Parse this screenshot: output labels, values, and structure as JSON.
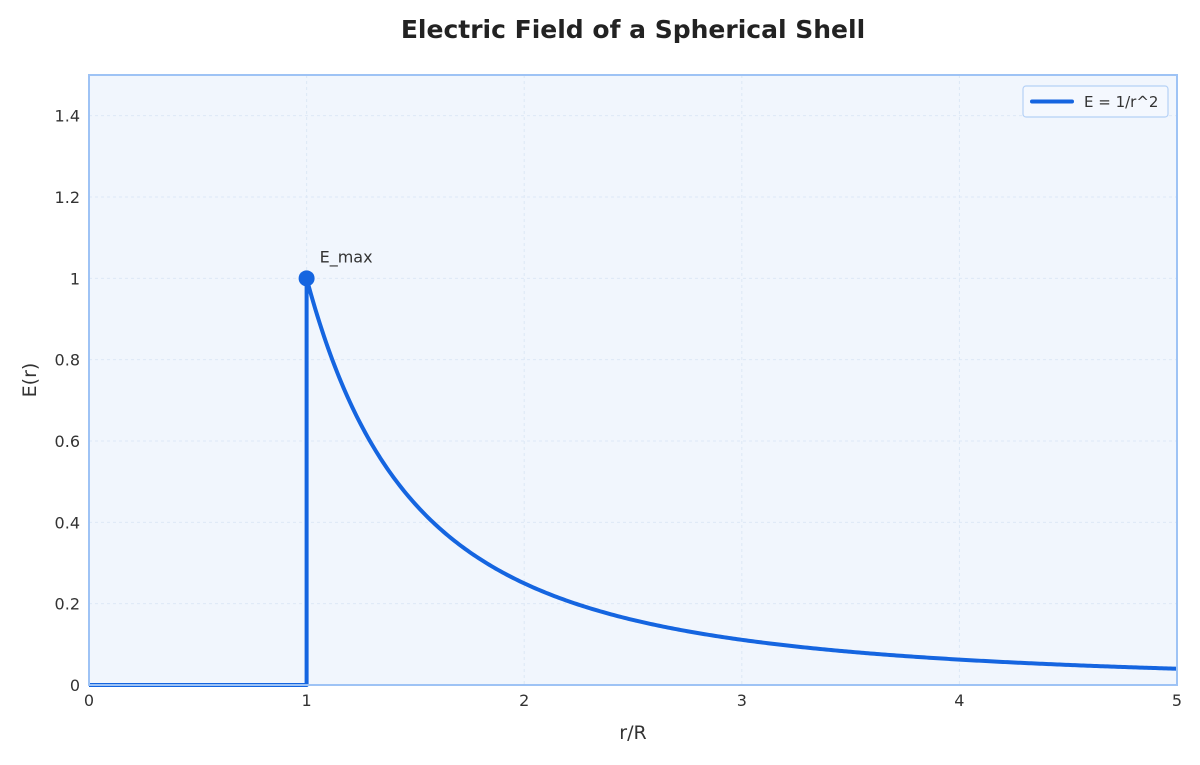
{
  "chart_data": {
    "type": "line",
    "title": "Electric Field of a Spherical Shell",
    "xlabel": "r/R",
    "ylabel": "E(r)",
    "xlim": [
      0,
      5
    ],
    "ylim": [
      0,
      1.5
    ],
    "x_ticks": [
      0,
      1,
      2,
      3,
      4,
      5
    ],
    "x_tick_labels": [
      "0",
      "1",
      "2",
      "3",
      "4",
      "5"
    ],
    "y_ticks": [
      0,
      0.2,
      0.4,
      0.6,
      0.8,
      1,
      1.2,
      1.4
    ],
    "y_tick_labels": [
      "0",
      "0.2",
      "0.4",
      "0.6",
      "0.8",
      "1",
      "1.2",
      "1.4"
    ],
    "grid": true,
    "legend_position": "top-right",
    "series": [
      {
        "name": "E = 1/r^2",
        "color": "#1565e0",
        "x": [
          0,
          1,
          1,
          1.1,
          1.2,
          1.3,
          1.4,
          1.5,
          1.6,
          1.8,
          2.0,
          2.2,
          2.5,
          2.75,
          3.0,
          3.5,
          4.0,
          4.5,
          5.0
        ],
        "y": [
          0,
          0,
          1,
          0.826,
          0.694,
          0.592,
          0.51,
          0.444,
          0.391,
          0.309,
          0.25,
          0.207,
          0.16,
          0.132,
          0.111,
          0.082,
          0.0625,
          0.049,
          0.04
        ]
      }
    ],
    "reference_line": {
      "x": 1,
      "y_from": 0,
      "y_to": 1,
      "color": "#f0890f",
      "style": "dashed"
    },
    "annotations": [
      {
        "text": "E_max",
        "x": 1,
        "y": 1,
        "color": "#1565e0"
      }
    ],
    "colors": {
      "plot_background": "#f1f6fd",
      "frame": "#9ec3f5",
      "grid": "#dde8f6"
    }
  }
}
